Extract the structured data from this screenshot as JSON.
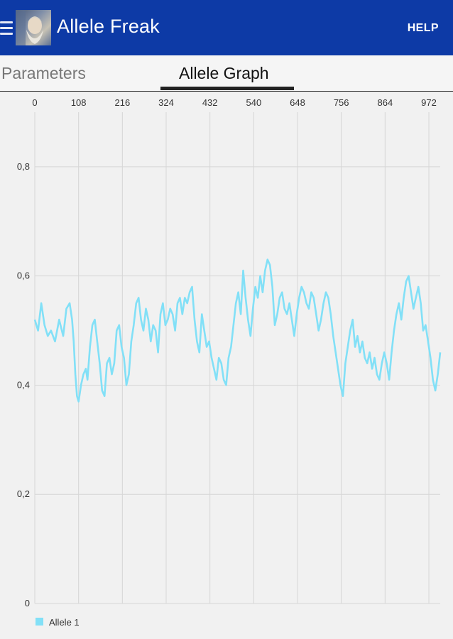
{
  "app": {
    "title": "Allele Freak",
    "help_label": "HELP"
  },
  "tabs": [
    {
      "label": "Parameters",
      "selected": false
    },
    {
      "label": "Allele Graph",
      "selected": true
    }
  ],
  "icons": {
    "menu": "hamburger-menu-icon",
    "avatar": "app-avatar-icon"
  },
  "colors": {
    "appbar": "#0d3aa6",
    "series": "#82e0f7"
  },
  "chart_data": {
    "type": "line",
    "xlim": [
      0,
      1000
    ],
    "ylim": [
      0,
      0.9
    ],
    "x_ticks": [
      0,
      108,
      216,
      324,
      432,
      540,
      648,
      756,
      864,
      972
    ],
    "x_tick_labels": [
      "0",
      "108",
      "216",
      "324",
      "432",
      "540",
      "648",
      "756",
      "864",
      "972"
    ],
    "y_ticks": [
      0,
      0.2,
      0.4,
      0.6,
      0.8
    ],
    "y_tick_labels": [
      "0",
      "0,2",
      "0,4",
      "0,6",
      "0,8"
    ],
    "x_axis_position": "top",
    "grid": true,
    "legend": "bottom-left",
    "series": [
      {
        "name": "Allele 1",
        "color": "#82e0f7",
        "x": [
          0,
          8,
          16,
          24,
          32,
          40,
          50,
          60,
          70,
          78,
          86,
          92,
          96,
          100,
          104,
          108,
          114,
          120,
          126,
          130,
          136,
          142,
          148,
          154,
          160,
          166,
          172,
          178,
          184,
          190,
          196,
          202,
          208,
          214,
          220,
          226,
          232,
          238,
          244,
          250,
          256,
          262,
          268,
          274,
          280,
          286,
          292,
          298,
          304,
          310,
          316,
          322,
          328,
          334,
          340,
          346,
          352,
          358,
          364,
          370,
          376,
          382,
          388,
          394,
          400,
          406,
          412,
          418,
          424,
          430,
          436,
          442,
          448,
          454,
          460,
          466,
          472,
          478,
          484,
          490,
          496,
          502,
          508,
          514,
          520,
          526,
          532,
          538,
          544,
          550,
          556,
          562,
          568,
          574,
          580,
          586,
          592,
          598,
          604,
          610,
          616,
          622,
          628,
          634,
          640,
          646,
          652,
          658,
          664,
          670,
          676,
          682,
          688,
          694,
          700,
          706,
          712,
          718,
          724,
          730,
          736,
          742,
          748,
          754,
          760,
          766,
          772,
          778,
          784,
          790,
          796,
          802,
          808,
          814,
          820,
          826,
          832,
          838,
          844,
          850,
          856,
          862,
          868,
          874,
          880,
          886,
          892,
          898,
          904,
          910,
          916,
          922,
          928,
          934,
          940,
          946,
          952,
          958,
          964,
          970,
          976,
          982,
          988,
          994,
          1000
        ],
        "y": [
          0.52,
          0.5,
          0.55,
          0.51,
          0.49,
          0.5,
          0.48,
          0.52,
          0.49,
          0.54,
          0.55,
          0.52,
          0.48,
          0.42,
          0.38,
          0.37,
          0.4,
          0.42,
          0.43,
          0.41,
          0.47,
          0.51,
          0.52,
          0.48,
          0.44,
          0.39,
          0.38,
          0.44,
          0.45,
          0.42,
          0.44,
          0.5,
          0.51,
          0.47,
          0.45,
          0.4,
          0.42,
          0.48,
          0.51,
          0.55,
          0.56,
          0.52,
          0.5,
          0.54,
          0.52,
          0.48,
          0.51,
          0.5,
          0.46,
          0.53,
          0.55,
          0.51,
          0.52,
          0.54,
          0.53,
          0.5,
          0.55,
          0.56,
          0.53,
          0.56,
          0.55,
          0.57,
          0.58,
          0.52,
          0.48,
          0.46,
          0.53,
          0.5,
          0.47,
          0.48,
          0.45,
          0.43,
          0.41,
          0.45,
          0.44,
          0.41,
          0.4,
          0.45,
          0.47,
          0.51,
          0.55,
          0.57,
          0.53,
          0.61,
          0.56,
          0.52,
          0.49,
          0.54,
          0.58,
          0.56,
          0.6,
          0.57,
          0.61,
          0.63,
          0.62,
          0.58,
          0.51,
          0.53,
          0.56,
          0.57,
          0.54,
          0.53,
          0.55,
          0.52,
          0.49,
          0.53,
          0.56,
          0.58,
          0.57,
          0.55,
          0.54,
          0.57,
          0.56,
          0.53,
          0.5,
          0.52,
          0.55,
          0.57,
          0.56,
          0.53,
          0.49,
          0.46,
          0.43,
          0.4,
          0.38,
          0.44,
          0.47,
          0.5,
          0.52,
          0.47,
          0.49,
          0.46,
          0.48,
          0.45,
          0.44,
          0.46,
          0.43,
          0.45,
          0.42,
          0.41,
          0.44,
          0.46,
          0.44,
          0.41,
          0.46,
          0.5,
          0.53,
          0.55,
          0.52,
          0.56,
          0.59,
          0.6,
          0.57,
          0.54,
          0.56,
          0.58,
          0.55,
          0.5,
          0.51,
          0.48,
          0.45,
          0.41,
          0.39,
          0.42,
          0.46
        ]
      }
    ]
  }
}
